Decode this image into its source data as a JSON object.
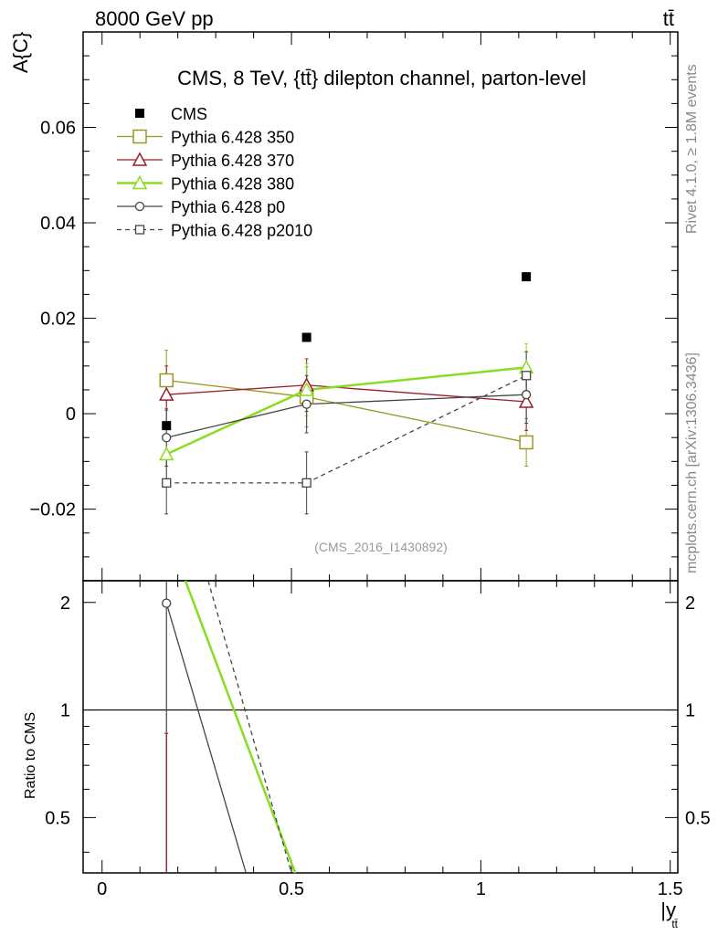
{
  "header": {
    "energy_label": "8000 GeV pp",
    "process_label": "tt̄"
  },
  "side_labels": {
    "rivet": "Rivet 4.1.0, ≥ 1.8M events",
    "mcplots": "mcplots.cern.ch [arXiv:1306.3436]"
  },
  "chart_data": [
    {
      "type": "line",
      "title": "CMS, 8 TeV, {tt̄} dilepton channel, parton-level",
      "ylabel": "A_{C}",
      "xlabel": "|y_tt̄|",
      "analysis_id": "(CMS_2016_I1430892)",
      "xlim": [
        -0.05,
        1.52
      ],
      "ylim": [
        -0.035,
        0.08
      ],
      "yticks": [
        -0.02,
        0,
        0.02,
        0.04,
        0.06
      ],
      "ytick_labels": [
        "−0.02",
        "0",
        "0.02",
        "0.04",
        "0.06"
      ],
      "x": [
        0.17,
        0.54,
        1.12
      ],
      "data": {
        "name": "CMS",
        "color": "#000000",
        "values": [
          -0.0025,
          0.016,
          0.0287
        ]
      },
      "series": [
        {
          "name": "Pythia 6.428 350",
          "color": "#999922",
          "marker": "square-open",
          "dash": false,
          "width": 1.3,
          "values": [
            0.007,
            0.0035,
            -0.006
          ],
          "err": [
            0.0063,
            0.0063,
            0.005
          ]
        },
        {
          "name": "Pythia 6.428 370",
          "color": "#9b1c2b",
          "marker": "triangle-open",
          "dash": false,
          "width": 1.3,
          "values": [
            0.004,
            0.006,
            0.0025
          ],
          "err": [
            0.006,
            0.0055,
            0.006
          ]
        },
        {
          "name": "Pythia 6.428 380",
          "color": "#88dd22",
          "marker": "triangle-open",
          "dash": false,
          "width": 2.5,
          "values": [
            -0.0085,
            0.005,
            0.0097
          ],
          "err": [
            0.006,
            0.0055,
            0.005
          ]
        },
        {
          "name": "Pythia 6.428 p0",
          "color": "#444444",
          "marker": "circle-open",
          "dash": false,
          "width": 1.3,
          "values": [
            -0.005,
            0.002,
            0.004
          ],
          "err": [
            0.006,
            0.006,
            0.006
          ]
        },
        {
          "name": "Pythia 6.428 p2010",
          "color": "#444444",
          "marker": "square-small-open",
          "dash": true,
          "width": 1.3,
          "values": [
            -0.0145,
            -0.0145,
            0.008
          ],
          "err": [
            0.0065,
            0.0065,
            0.005
          ]
        }
      ]
    },
    {
      "type": "line",
      "ylabel": "Ratio to CMS",
      "xlabel": "|y_tt̄|",
      "xlim": [
        -0.05,
        1.52
      ],
      "ylim": [
        0.35,
        2.3
      ],
      "yticks": [
        0.5,
        1,
        2
      ],
      "ytick_labels": [
        "0.5",
        "1",
        "2"
      ],
      "xticks": [
        0,
        0.5,
        1,
        1.5
      ],
      "xtick_labels": [
        "0",
        "0.5",
        "1",
        "1.5"
      ],
      "reference_line": 1,
      "ratio_lines": [
        {
          "name": "Pythia 6.428 380",
          "color": "#88dd22",
          "width": 2.5,
          "dash": false,
          "points": [
            [
              0.22,
              2.3
            ],
            [
              0.51,
              0.35
            ]
          ]
        },
        {
          "name": "Pythia 6.428 p2010",
          "color": "#444444",
          "width": 1.3,
          "dash": true,
          "points": [
            [
              0.28,
              2.3
            ],
            [
              0.5,
              0.35
            ]
          ]
        },
        {
          "name": "Pythia 6.428 p0",
          "color": "#444444",
          "width": 1.3,
          "dash": false,
          "points": [
            [
              0.17,
              1.99
            ],
            [
              0.38,
              0.35
            ]
          ]
        }
      ],
      "ratio_markers": [
        {
          "name": "Pythia 6.428 p0",
          "color": "#444444",
          "x": 0.17,
          "y": 1.99,
          "err_hi": 2.3,
          "err_lo": 0.35
        },
        {
          "name": "Pythia 6.428 370",
          "color": "#9b1c2b",
          "x": 0.17,
          "y": 0.86,
          "err_hi": 0.86,
          "err_lo": 0.35
        }
      ]
    }
  ]
}
